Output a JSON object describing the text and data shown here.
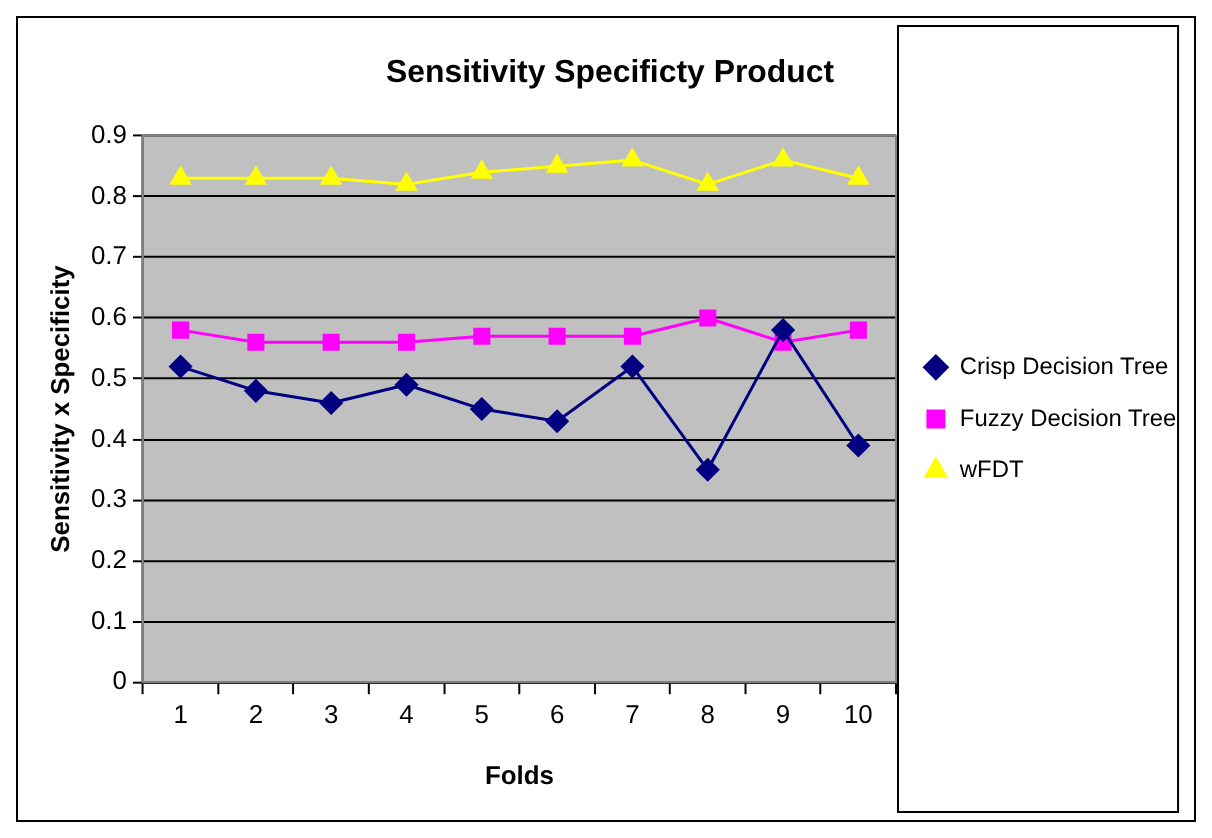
{
  "chart_data": {
    "type": "line",
    "title": "Sensitivity Specificty Product",
    "xlabel": "Folds",
    "ylabel": "Sensitivity x Specificity",
    "categories": [
      "1",
      "2",
      "3",
      "4",
      "5",
      "6",
      "7",
      "8",
      "9",
      "10"
    ],
    "series": [
      {
        "name": "Crisp Decision Tree",
        "color": "#000080",
        "marker": "diamond",
        "values": [
          0.52,
          0.48,
          0.46,
          0.49,
          0.45,
          0.43,
          0.52,
          0.35,
          0.58,
          0.39
        ]
      },
      {
        "name": "Fuzzy Decision Tree",
        "color": "#ff00ff",
        "marker": "square",
        "values": [
          0.58,
          0.56,
          0.56,
          0.56,
          0.57,
          0.57,
          0.57,
          0.6,
          0.56,
          0.58
        ]
      },
      {
        "name": "wFDT",
        "color": "#ffff00",
        "marker": "triangle",
        "values": [
          0.83,
          0.83,
          0.83,
          0.82,
          0.84,
          0.85,
          0.86,
          0.82,
          0.86,
          0.83
        ]
      }
    ],
    "ylim": [
      0,
      0.9
    ],
    "yticks": [
      0,
      0.1,
      0.2,
      0.3,
      0.4,
      0.5,
      0.6,
      0.7,
      0.8,
      0.9
    ],
    "grid": "y",
    "legend": "right",
    "line_style": "solid"
  }
}
